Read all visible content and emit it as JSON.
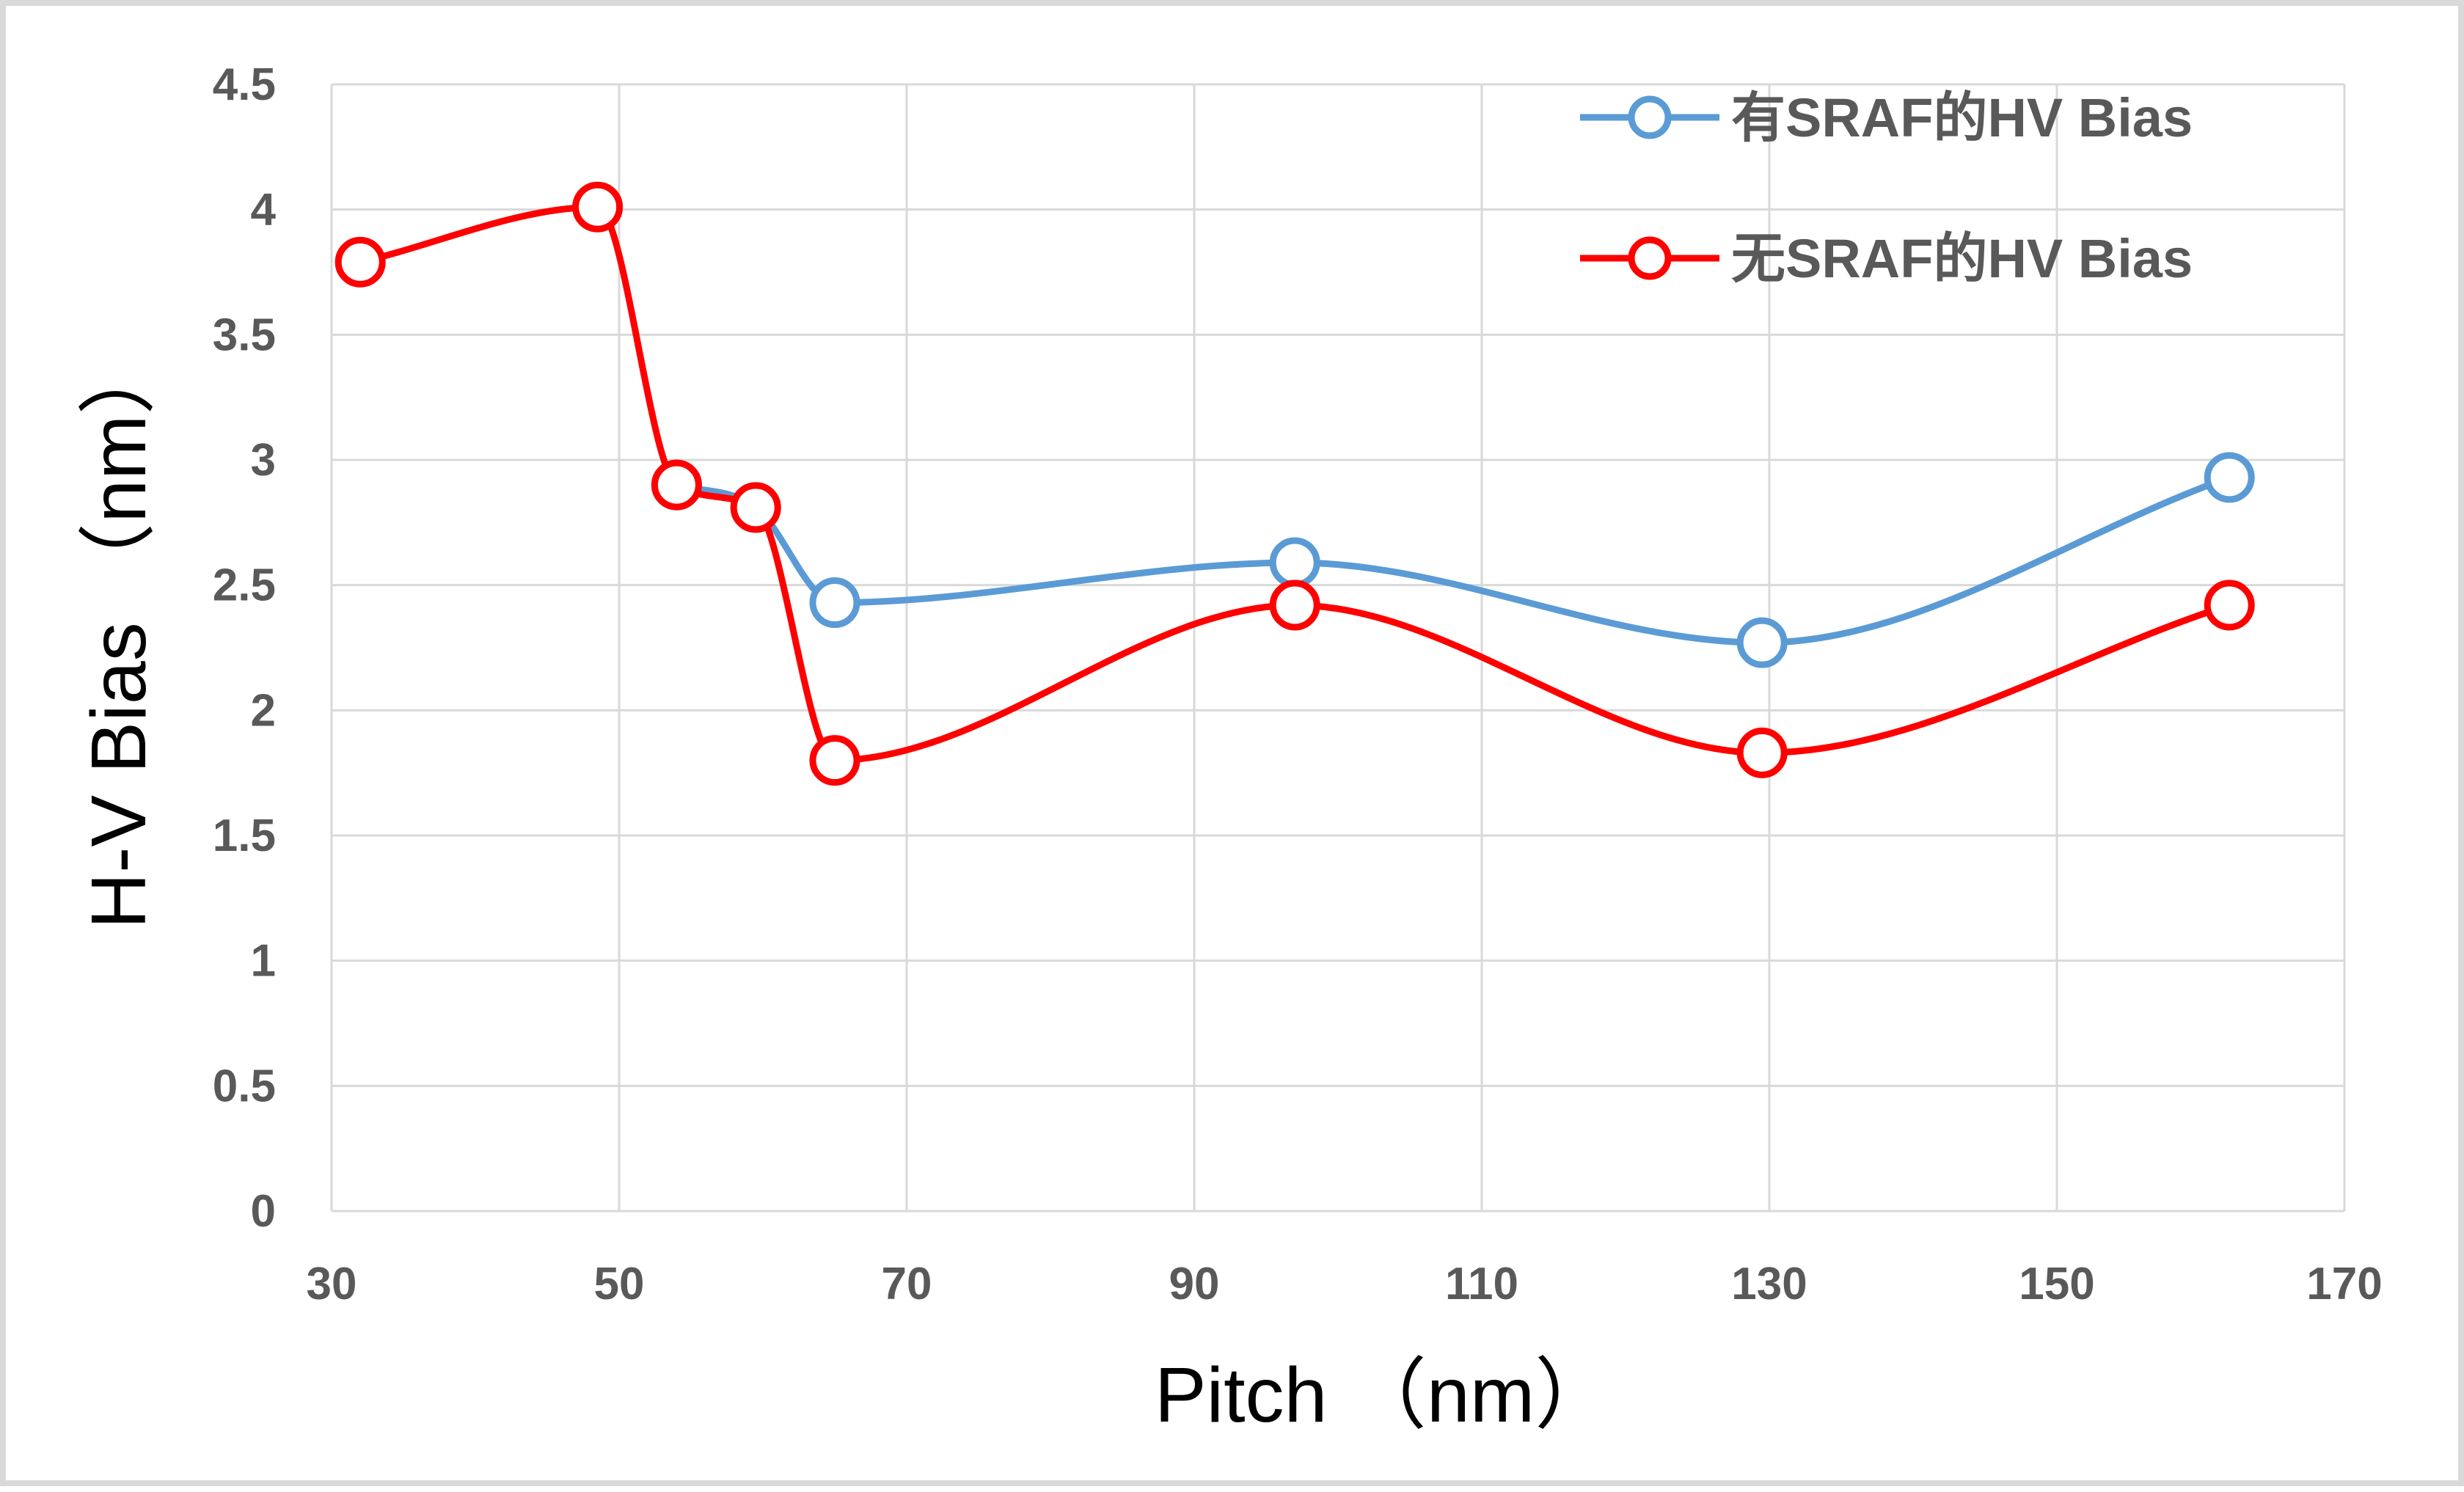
{
  "chart_data": {
    "type": "line",
    "smooth": true,
    "xlabel": "Pitch （nm）",
    "ylabel": "H-V Bias （nm）",
    "xlim": [
      30,
      170
    ],
    "ylim": [
      0,
      4.5
    ],
    "x_ticks": [
      "30",
      "50",
      "70",
      "90",
      "110",
      "130",
      "150",
      "170"
    ],
    "y_ticks": [
      "0",
      "0.5",
      "1",
      "1.5",
      "2",
      "2.5",
      "3",
      "3.5",
      "4",
      "4.5"
    ],
    "grid": true,
    "legend_position": "top-right",
    "series": [
      {
        "name": "有SRAF的HV Bias",
        "color": "#5b9bd5",
        "marker": "open-circle",
        "points": [
          [
            54,
            2.9
          ],
          [
            59.5,
            2.81
          ],
          [
            65,
            2.43
          ],
          [
            97,
            2.59
          ],
          [
            129.5,
            2.27
          ],
          [
            162,
            2.93
          ]
        ]
      },
      {
        "name": "无SRAF的HV Bias",
        "color": "#ff0000",
        "marker": "open-circle",
        "points": [
          [
            32,
            3.79
          ],
          [
            48.5,
            4.01
          ],
          [
            54,
            2.9
          ],
          [
            59.5,
            2.81
          ],
          [
            65,
            1.8
          ],
          [
            97,
            2.42
          ],
          [
            129.5,
            1.83
          ],
          [
            162,
            2.42
          ]
        ]
      }
    ]
  }
}
